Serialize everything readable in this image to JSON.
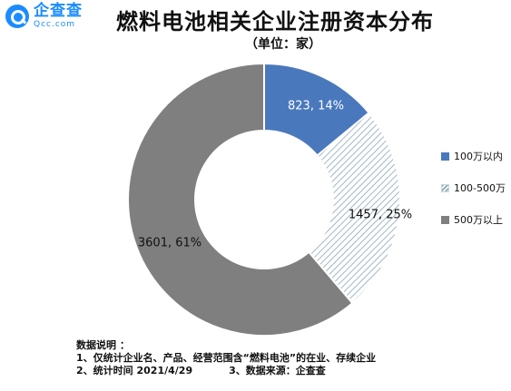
{
  "brand": {
    "name_cn": "企查查",
    "name_en": "Qcc.com",
    "color": "#1a8cff"
  },
  "title": "燃料电池相关企业注册资本分布",
  "subtitle": "（单位：家）",
  "chart_data": {
    "type": "pie",
    "donut": true,
    "unit": "家",
    "categories": [
      "100万以内",
      "100-500万",
      "500万以上"
    ],
    "values": [
      823,
      1457,
      3601
    ],
    "percents": [
      14,
      25,
      61
    ],
    "data_labels": [
      "823, 14%",
      "1457, 25%",
      "3601, 61%"
    ],
    "colors": [
      "#4a78bd",
      "hatch:#8aa6b6",
      "#7f7f7f"
    ],
    "legend_position": "right"
  },
  "legend": [
    {
      "label": "100万以内",
      "color": "#4a78bd",
      "pattern": "solid"
    },
    {
      "label": "100-500万",
      "color": "#8aa6b6",
      "pattern": "hatch"
    },
    {
      "label": "500万以上",
      "color": "#7f7f7f",
      "pattern": "solid"
    }
  ],
  "notes": {
    "heading": "数据说明 ：",
    "line1": "1、仅统计企业名、产品、经营范围含“燃料电池”的在业、存续企业",
    "line2a": "2、统计时间  2021/4/29",
    "line2b": "3、数据来源：企查查"
  }
}
